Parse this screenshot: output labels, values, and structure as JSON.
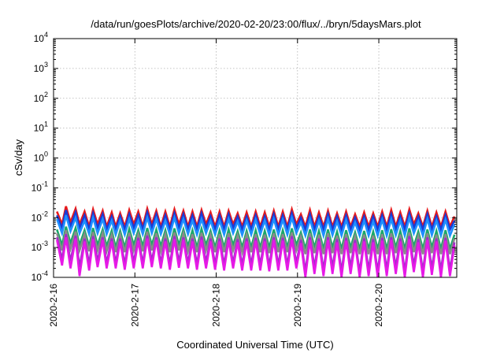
{
  "chart_data": {
    "type": "line",
    "title": "/data/run/goesPlots/archive/2020-02-20/23:00/flux/../bryn/5daysMars.plot",
    "xlabel": "Coordinated Universal Time (UTC)",
    "ylabel": "cSv/day",
    "y_scale": "log",
    "ylim": [
      0.0001,
      10000
    ],
    "y_ticks": [
      {
        "value": 0.0001,
        "base": "10",
        "exp": "-4"
      },
      {
        "value": 0.001,
        "base": "10",
        "exp": "-3"
      },
      {
        "value": 0.01,
        "base": "10",
        "exp": "-2"
      },
      {
        "value": 0.1,
        "base": "10",
        "exp": "-1"
      },
      {
        "value": 1,
        "base": "10",
        "exp": "0"
      },
      {
        "value": 10,
        "base": "10",
        "exp": "1"
      },
      {
        "value": 100,
        "base": "10",
        "exp": "2"
      },
      {
        "value": 1000,
        "base": "10",
        "exp": "3"
      },
      {
        "value": 10000,
        "base": "10",
        "exp": "4"
      }
    ],
    "xlim": [
      "2020-02-16T00:00",
      "2020-02-20T23:00"
    ],
    "x_ticks": [
      {
        "value": "2020-02-16T00:00",
        "label": "2020-2-16"
      },
      {
        "value": "2020-02-17T00:00",
        "label": "2020-2-17"
      },
      {
        "value": "2020-02-18T00:00",
        "label": "2020-2-18"
      },
      {
        "value": "2020-02-19T00:00",
        "label": "2020-2-19"
      },
      {
        "value": "2020-02-20T00:00",
        "label": "2020-2-20"
      }
    ],
    "grid": true,
    "legend": "none",
    "x": [
      "2020-02-16T01:00",
      "2020-02-16T02:30",
      "2020-02-16T03:40",
      "2020-02-16T05:00",
      "2020-02-16T06:30",
      "2020-02-16T07:40",
      "2020-02-16T09:10",
      "2020-02-16T10:30",
      "2020-02-16T11:40",
      "2020-02-16T13:00",
      "2020-02-16T14:30",
      "2020-02-16T15:40",
      "2020-02-16T17:10",
      "2020-02-16T18:20",
      "2020-02-16T19:40",
      "2020-02-16T21:00",
      "2020-02-16T22:20",
      "2020-02-16T23:40",
      "2020-02-17T01:00",
      "2020-02-17T02:20",
      "2020-02-17T03:40",
      "2020-02-17T05:00",
      "2020-02-17T06:20",
      "2020-02-17T07:40",
      "2020-02-17T09:00",
      "2020-02-17T10:20",
      "2020-02-17T11:40",
      "2020-02-17T13:00",
      "2020-02-17T14:20",
      "2020-02-17T15:40",
      "2020-02-17T17:00",
      "2020-02-17T18:20",
      "2020-02-17T19:40",
      "2020-02-17T21:00",
      "2020-02-17T22:20",
      "2020-02-17T23:40",
      "2020-02-18T01:00",
      "2020-02-18T02:20",
      "2020-02-18T03:40",
      "2020-02-18T05:00",
      "2020-02-18T06:20",
      "2020-02-18T07:40",
      "2020-02-18T09:00",
      "2020-02-18T10:20",
      "2020-02-18T11:40",
      "2020-02-18T13:00",
      "2020-02-18T14:20",
      "2020-02-18T15:40",
      "2020-02-18T17:00",
      "2020-02-18T18:20",
      "2020-02-18T19:40",
      "2020-02-18T21:00",
      "2020-02-18T22:20",
      "2020-02-18T23:40",
      "2020-02-19T01:00",
      "2020-02-19T02:20",
      "2020-02-19T03:40",
      "2020-02-19T05:00",
      "2020-02-19T06:20",
      "2020-02-19T07:40",
      "2020-02-19T09:00",
      "2020-02-19T10:20",
      "2020-02-19T11:40",
      "2020-02-19T13:00",
      "2020-02-19T14:20",
      "2020-02-19T15:40",
      "2020-02-19T17:00",
      "2020-02-19T18:20",
      "2020-02-19T19:40",
      "2020-02-19T21:00",
      "2020-02-19T22:20",
      "2020-02-19T23:40",
      "2020-02-20T01:00",
      "2020-02-20T02:20",
      "2020-02-20T03:40",
      "2020-02-20T05:00",
      "2020-02-20T06:20",
      "2020-02-20T07:40",
      "2020-02-20T09:00",
      "2020-02-20T10:20",
      "2020-02-20T11:40",
      "2020-02-20T13:00",
      "2020-02-20T14:20",
      "2020-02-20T15:40",
      "2020-02-20T17:00",
      "2020-02-20T18:20",
      "2020-02-20T19:40",
      "2020-02-20T21:00",
      "2020-02-20T22:20"
    ],
    "series": [
      {
        "color": "#e8191a",
        "values": [
          0.016,
          0.006,
          0.024,
          0.007,
          0.02,
          0.006,
          0.016,
          0.005,
          0.019,
          0.006,
          0.017,
          0.005,
          0.015,
          0.005,
          0.014,
          0.005,
          0.018,
          0.006,
          0.016,
          0.005,
          0.02,
          0.006,
          0.017,
          0.005,
          0.016,
          0.005,
          0.019,
          0.006,
          0.017,
          0.005,
          0.016,
          0.005,
          0.018,
          0.006,
          0.015,
          0.005,
          0.016,
          0.005,
          0.017,
          0.006,
          0.014,
          0.005,
          0.015,
          0.005,
          0.016,
          0.005,
          0.015,
          0.005,
          0.017,
          0.005,
          0.016,
          0.005,
          0.019,
          0.006,
          0.013,
          0.005,
          0.018,
          0.005,
          0.015,
          0.005,
          0.017,
          0.005,
          0.014,
          0.005,
          0.016,
          0.005,
          0.013,
          0.005,
          0.015,
          0.005,
          0.014,
          0.005,
          0.016,
          0.005,
          0.018,
          0.005,
          0.015,
          0.005,
          0.019,
          0.006,
          0.014,
          0.005,
          0.017,
          0.005,
          0.015,
          0.005,
          0.016,
          0.005,
          0.011
        ]
      },
      {
        "color": "#1a3bd6",
        "values": [
          0.012,
          0.0045,
          0.018,
          0.005,
          0.015,
          0.0045,
          0.012,
          0.004,
          0.014,
          0.0045,
          0.013,
          0.004,
          0.011,
          0.004,
          0.011,
          0.004,
          0.013,
          0.0045,
          0.012,
          0.004,
          0.015,
          0.0045,
          0.013,
          0.004,
          0.012,
          0.004,
          0.014,
          0.0045,
          0.013,
          0.004,
          0.012,
          0.004,
          0.014,
          0.0045,
          0.011,
          0.004,
          0.012,
          0.004,
          0.013,
          0.0045,
          0.011,
          0.004,
          0.011,
          0.004,
          0.012,
          0.004,
          0.011,
          0.004,
          0.013,
          0.004,
          0.012,
          0.004,
          0.014,
          0.0045,
          0.01,
          0.004,
          0.013,
          0.004,
          0.011,
          0.004,
          0.013,
          0.004,
          0.011,
          0.004,
          0.012,
          0.004,
          0.01,
          0.004,
          0.011,
          0.004,
          0.011,
          0.004,
          0.012,
          0.004,
          0.013,
          0.004,
          0.011,
          0.004,
          0.014,
          0.0045,
          0.011,
          0.004,
          0.013,
          0.004,
          0.011,
          0.004,
          0.012,
          0.004,
          0.008
        ]
      },
      {
        "color": "#1e90ff",
        "values": [
          0.009,
          0.003,
          0.012,
          0.0035,
          0.01,
          0.003,
          0.008,
          0.0028,
          0.01,
          0.003,
          0.009,
          0.0028,
          0.008,
          0.0027,
          0.008,
          0.0027,
          0.009,
          0.003,
          0.008,
          0.0028,
          0.01,
          0.003,
          0.009,
          0.0028,
          0.008,
          0.0027,
          0.01,
          0.003,
          0.009,
          0.0028,
          0.008,
          0.0027,
          0.009,
          0.003,
          0.008,
          0.0027,
          0.008,
          0.0027,
          0.009,
          0.003,
          0.0075,
          0.0026,
          0.008,
          0.0027,
          0.0085,
          0.0027,
          0.008,
          0.0026,
          0.009,
          0.0027,
          0.0085,
          0.0027,
          0.01,
          0.003,
          0.007,
          0.0025,
          0.009,
          0.0026,
          0.008,
          0.0025,
          0.009,
          0.0026,
          0.0075,
          0.0025,
          0.0085,
          0.0026,
          0.007,
          0.0025,
          0.008,
          0.0025,
          0.0075,
          0.0025,
          0.0085,
          0.0025,
          0.009,
          0.0026,
          0.008,
          0.0025,
          0.01,
          0.003,
          0.0075,
          0.0025,
          0.009,
          0.0026,
          0.008,
          0.0025,
          0.0085,
          0.0025,
          0.006
        ]
      },
      {
        "color": "#1aa86a",
        "values": [
          0.004,
          0.0012,
          0.005,
          0.0014,
          0.0045,
          0.0012,
          0.0038,
          0.0011,
          0.0045,
          0.0012,
          0.004,
          0.0011,
          0.0037,
          0.001,
          0.0036,
          0.001,
          0.0042,
          0.0012,
          0.0038,
          0.0011,
          0.0045,
          0.0012,
          0.004,
          0.0011,
          0.0038,
          0.001,
          0.0044,
          0.0012,
          0.004,
          0.0011,
          0.0038,
          0.001,
          0.0042,
          0.0012,
          0.0036,
          0.001,
          0.0037,
          0.001,
          0.004,
          0.0012,
          0.0035,
          0.001,
          0.0036,
          0.001,
          0.0038,
          0.001,
          0.0036,
          0.001,
          0.004,
          0.001,
          0.0038,
          0.001,
          0.0044,
          0.0012,
          0.0032,
          0.0009,
          0.004,
          0.001,
          0.0036,
          0.0009,
          0.004,
          0.001,
          0.0034,
          0.0009,
          0.0038,
          0.001,
          0.0032,
          0.0009,
          0.0036,
          0.0009,
          0.0034,
          0.0009,
          0.0038,
          0.0009,
          0.0041,
          0.001,
          0.0036,
          0.0009,
          0.0044,
          0.0011,
          0.0034,
          0.0009,
          0.004,
          0.001,
          0.0036,
          0.0009,
          0.0038,
          0.0009,
          0.0027
        ]
      },
      {
        "color": "#8a8a8a",
        "values": [
          0.003,
          0.0008,
          0.0038,
          0.0009,
          0.0034,
          0.0008,
          0.0028,
          0.00075,
          0.0033,
          0.0008,
          0.003,
          0.00075,
          0.0027,
          0.0007,
          0.0027,
          0.0007,
          0.0031,
          0.0008,
          0.0028,
          0.00075,
          0.0034,
          0.0008,
          0.003,
          0.00075,
          0.0028,
          0.0007,
          0.0032,
          0.0008,
          0.003,
          0.00075,
          0.0028,
          0.0007,
          0.0031,
          0.0008,
          0.0027,
          0.0007,
          0.0028,
          0.0007,
          0.003,
          0.0008,
          0.0026,
          0.0007,
          0.0027,
          0.0007,
          0.0028,
          0.0007,
          0.0027,
          0.00065,
          0.003,
          0.0007,
          0.0028,
          0.0007,
          0.0032,
          0.0008,
          0.0024,
          0.0006,
          0.003,
          0.00065,
          0.0027,
          0.0006,
          0.003,
          0.00065,
          0.0025,
          0.0006,
          0.0028,
          0.00065,
          0.0024,
          0.0006,
          0.0027,
          0.0006,
          0.0025,
          0.0006,
          0.0028,
          0.0006,
          0.003,
          0.00065,
          0.0027,
          0.0006,
          0.0032,
          0.0007,
          0.0025,
          0.0006,
          0.003,
          0.00065,
          0.0027,
          0.0006,
          0.0028,
          0.0006,
          0.002
        ]
      },
      {
        "color": "#9b30c8",
        "values": [
          0.0022,
          0.0004,
          0.0028,
          0.00035,
          0.0025,
          0.00022,
          0.002,
          0.00028,
          0.0024,
          0.00035,
          0.0022,
          0.0003,
          0.002,
          0.0003,
          0.002,
          0.00028,
          0.0023,
          0.00032,
          0.0021,
          0.0003,
          0.0025,
          0.00035,
          0.0022,
          0.0003,
          0.002,
          0.00028,
          0.0024,
          0.00033,
          0.0022,
          0.0003,
          0.002,
          0.00028,
          0.0023,
          0.00032,
          0.002,
          0.00028,
          0.002,
          0.00027,
          0.0022,
          0.0003,
          0.0019,
          0.00026,
          0.002,
          0.00027,
          0.0021,
          0.00027,
          0.002,
          0.00025,
          0.0022,
          0.00026,
          0.0021,
          0.00026,
          0.0024,
          0.0003,
          0.0018,
          0.00016,
          0.0022,
          0.00022,
          0.002,
          0.00018,
          0.0022,
          0.00022,
          0.0019,
          0.00016,
          0.0021,
          0.00022,
          0.0018,
          0.00015,
          0.002,
          0.00018,
          0.0019,
          0.00016,
          0.0021,
          0.00018,
          0.0022,
          0.00022,
          0.002,
          0.00016,
          0.0024,
          0.00025,
          0.0019,
          0.00016,
          0.0022,
          0.0002,
          0.002,
          0.00017,
          0.0021,
          0.00018,
          0.0015
        ]
      },
      {
        "color": "#e619e6",
        "values": [
          0.0018,
          0.00025,
          0.0022,
          0.0002,
          0.002,
          0.00011,
          0.0016,
          0.00017,
          0.0019,
          0.00022,
          0.0018,
          0.0002,
          0.0016,
          0.0002,
          0.0016,
          0.00018,
          0.0018,
          0.0002,
          0.0017,
          0.0002,
          0.002,
          0.00022,
          0.0018,
          0.0002,
          0.0016,
          0.00018,
          0.0019,
          0.00021,
          0.0018,
          0.0002,
          0.0016,
          0.00018,
          0.0018,
          0.0002,
          0.0016,
          0.00018,
          0.0016,
          0.00017,
          0.0018,
          0.0002,
          0.0015,
          0.00017,
          0.0016,
          0.00017,
          0.0017,
          0.00017,
          0.0016,
          0.00016,
          0.0018,
          0.00017,
          0.0017,
          0.00017,
          0.0019,
          0.0002,
          0.0014,
          9e-05,
          0.0018,
          0.00013,
          0.0016,
          0.00011,
          0.0018,
          0.00013,
          0.0015,
          0.0001,
          0.0017,
          0.00013,
          0.0014,
          9e-05,
          0.0016,
          0.00011,
          0.0015,
          0.0001,
          0.0017,
          0.00011,
          0.0018,
          0.00013,
          0.0016,
          0.0001,
          0.0019,
          0.00015,
          0.0015,
          0.0001,
          0.0018,
          0.00012,
          0.0016,
          0.0001,
          0.0017,
          0.00011,
          0.0012
        ]
      }
    ]
  }
}
